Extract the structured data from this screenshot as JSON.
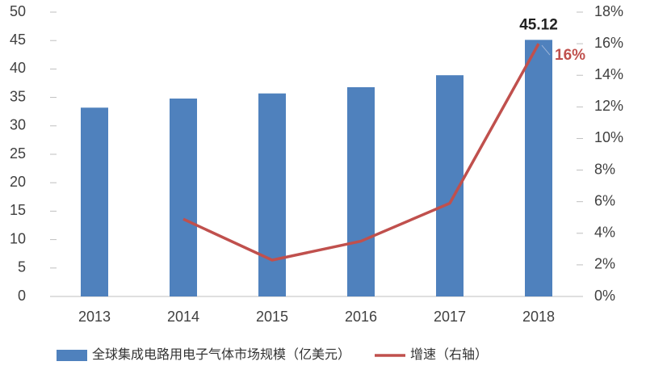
{
  "chart_data": {
    "type": "bar",
    "categories": [
      "2013",
      "2014",
      "2015",
      "2016",
      "2017",
      "2018"
    ],
    "series": [
      {
        "name": "全球集成电路用电子气体市场规模（亿美元）",
        "type": "bar",
        "color": "#4f81bd",
        "values": [
          33.2,
          34.8,
          35.7,
          36.8,
          38.9,
          45.12
        ],
        "value_labels": [
          null,
          null,
          null,
          null,
          null,
          "45.12"
        ]
      },
      {
        "name": "增速（右轴）",
        "type": "line",
        "axis": "y2",
        "color": "#c0504d",
        "values": [
          null,
          4.9,
          2.3,
          3.5,
          5.9,
          16
        ],
        "value_labels": [
          null,
          null,
          null,
          null,
          null,
          "16%"
        ]
      }
    ],
    "ylim": [
      0,
      50
    ],
    "yticks": [
      0,
      5,
      10,
      15,
      20,
      25,
      30,
      35,
      40,
      45,
      50
    ],
    "y2lim": [
      0,
      18
    ],
    "y2ticks": [
      {
        "value": 0,
        "label": "0%"
      },
      {
        "value": 2,
        "label": "2%"
      },
      {
        "value": 4,
        "label": "4%"
      },
      {
        "value": 6,
        "label": "6%"
      },
      {
        "value": 8,
        "label": "8%"
      },
      {
        "value": 10,
        "label": "10%"
      },
      {
        "value": 12,
        "label": "12%"
      },
      {
        "value": 14,
        "label": "14%"
      },
      {
        "value": 16,
        "label": "16%"
      },
      {
        "value": 18,
        "label": "18%"
      }
    ],
    "grid": false,
    "legend": "bottom"
  }
}
